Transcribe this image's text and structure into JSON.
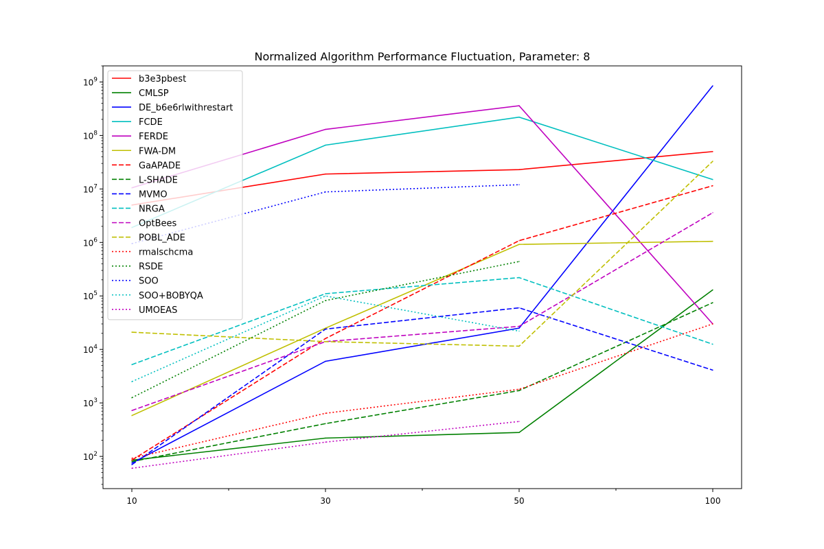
{
  "chart_data": {
    "type": "line",
    "title": "Normalized Algorithm Performance Fluctuation, Parameter: 8",
    "xlabel": "",
    "ylabel": "",
    "x": [
      "10",
      "30",
      "50",
      "100"
    ],
    "yscale": "log",
    "ylim": [
      25,
      2000000000
    ],
    "y_tick_labels": [
      "10^2",
      "10^3",
      "10^4",
      "10^5",
      "10^6",
      "10^7",
      "10^8",
      "10^9"
    ],
    "legend_position": "upper-left",
    "series": [
      {
        "name": "b3e3pbest",
        "color": "#ff0000",
        "style": "solid",
        "values": [
          5000000,
          19000000,
          23000000,
          50000000
        ]
      },
      {
        "name": "CMLSP",
        "color": "#008000",
        "style": "solid",
        "values": [
          85,
          220,
          280,
          130000
        ]
      },
      {
        "name": "DE_b6e6rlwithrestart",
        "color": "#0000ff",
        "style": "solid",
        "values": [
          75,
          6000,
          25000,
          850000000
        ]
      },
      {
        "name": "FCDE",
        "color": "#00bfbf",
        "style": "solid",
        "values": [
          1900000,
          66000000,
          220000000,
          15000000
        ]
      },
      {
        "name": "FERDE",
        "color": "#bf00bf",
        "style": "solid",
        "values": [
          10500000,
          130000000,
          360000000,
          30000
        ]
      },
      {
        "name": "FWA-DM",
        "color": "#bfbf00",
        "style": "solid",
        "values": [
          580,
          25000,
          920000,
          1050000
        ]
      },
      {
        "name": "GaAPADE",
        "color": "#ff0000",
        "style": "dashed",
        "values": [
          85,
          16000,
          1080000,
          11500000
        ]
      },
      {
        "name": "L-SHADE",
        "color": "#008000",
        "style": "dashed",
        "values": [
          80,
          410,
          1700,
          75000
        ]
      },
      {
        "name": "MVMO",
        "color": "#0000ff",
        "style": "dashed",
        "values": [
          70,
          24000,
          60000,
          4100
        ]
      },
      {
        "name": "NRGA",
        "color": "#00bfbf",
        "style": "dashed",
        "values": [
          5200,
          110000,
          220000,
          12500
        ]
      },
      {
        "name": "OptBees",
        "color": "#bf00bf",
        "style": "dashed",
        "values": [
          720,
          14000,
          27000,
          3600000
        ]
      },
      {
        "name": "POBL_ADE",
        "color": "#bfbf00",
        "style": "dashed",
        "values": [
          21000,
          14000,
          11500,
          33000000
        ]
      },
      {
        "name": "rmalschcma",
        "color": "#ff0000",
        "style": "dotted",
        "values": [
          92,
          640,
          1800,
          30000
        ]
      },
      {
        "name": "RSDE",
        "color": "#008000",
        "style": "dotted",
        "values": [
          1250,
          82000,
          440000,
          null
        ]
      },
      {
        "name": "SOO",
        "color": "#0000ff",
        "style": "dotted",
        "values": [
          950000,
          8800000,
          12000000,
          null
        ]
      },
      {
        "name": "SOO+BOBYQA",
        "color": "#00bfbf",
        "style": "dotted",
        "values": [
          2500,
          100000,
          22000,
          null
        ]
      },
      {
        "name": "UMOEAS",
        "color": "#bf00bf",
        "style": "dotted",
        "values": [
          60,
          185,
          450,
          null
        ]
      }
    ]
  }
}
